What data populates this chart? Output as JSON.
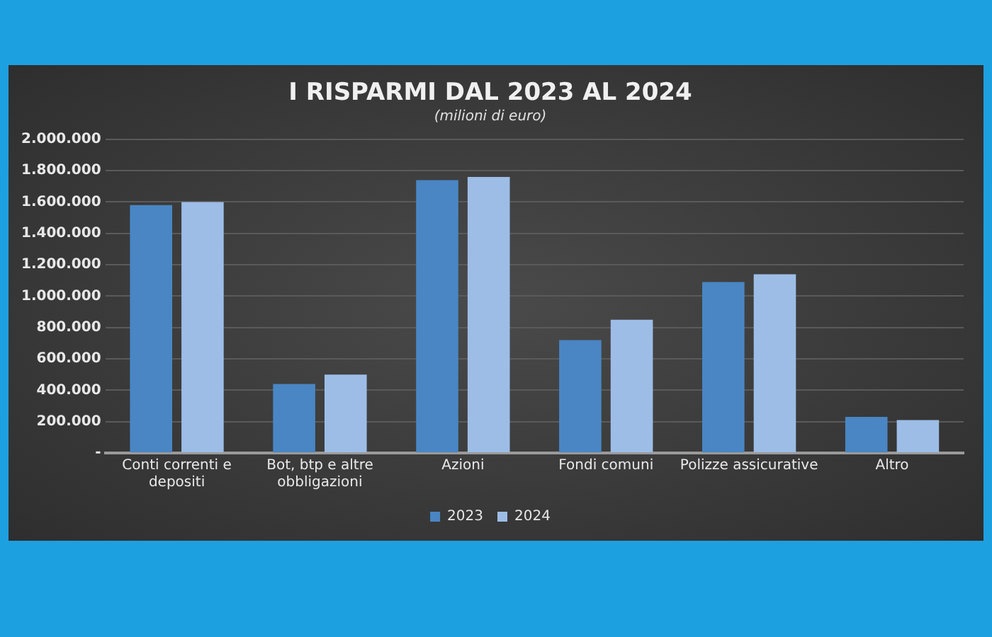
{
  "chart_data": {
    "type": "bar",
    "title": "I RISPARMI DAL 2023 AL 2024",
    "subtitle": "(milioni di euro)",
    "categories": [
      "Conti correnti e depositi",
      "Bot, btp e altre obbligazioni",
      "Azioni",
      "Fondi comuni",
      "Polizze assicurative",
      "Altro"
    ],
    "series": [
      {
        "name": "2023",
        "color": "#4a86c4",
        "values": [
          1580000,
          440000,
          1740000,
          720000,
          1090000,
          230000
        ]
      },
      {
        "name": "2024",
        "color": "#9dbde6",
        "values": [
          1600000,
          500000,
          1760000,
          850000,
          1140000,
          210000
        ]
      }
    ],
    "ylim": [
      0,
      2000000
    ],
    "yticks": [
      {
        "value": 0,
        "label": "-"
      },
      {
        "value": 200000,
        "label": "200.000"
      },
      {
        "value": 400000,
        "label": "400.000"
      },
      {
        "value": 600000,
        "label": "600.000"
      },
      {
        "value": 800000,
        "label": "800.000"
      },
      {
        "value": 1000000,
        "label": "1.000.000"
      },
      {
        "value": 1200000,
        "label": "1.200.000"
      },
      {
        "value": 1400000,
        "label": "1.400.000"
      },
      {
        "value": 1600000,
        "label": "1.600.000"
      },
      {
        "value": 1800000,
        "label": "1.800.000"
      },
      {
        "value": 2000000,
        "label": "2.000.000"
      }
    ],
    "grid": "y",
    "legend": "bottom"
  }
}
